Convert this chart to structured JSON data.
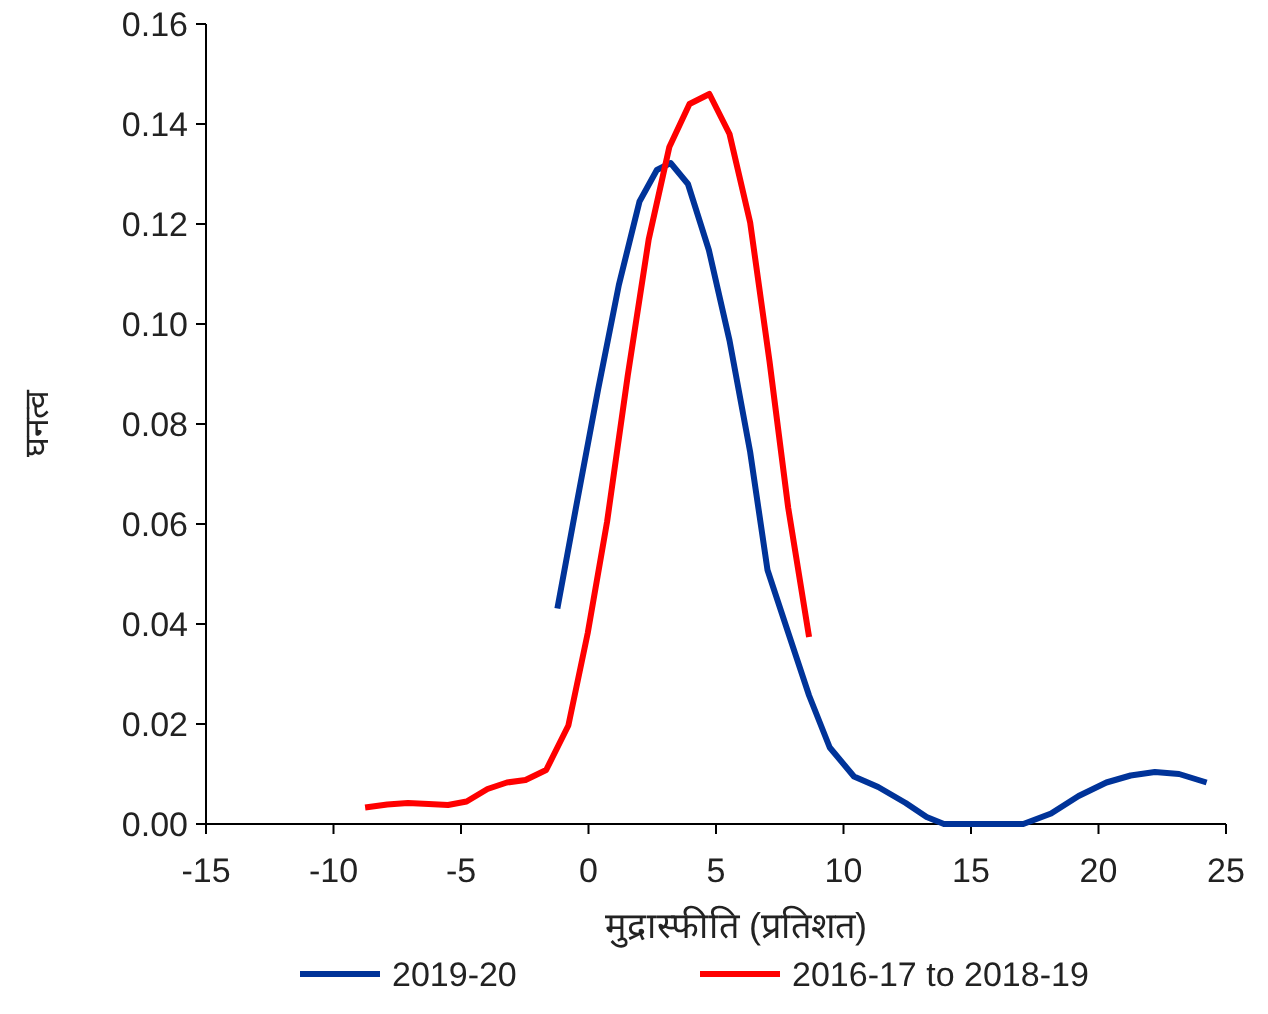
{
  "chart_data": {
    "type": "line",
    "xlabel": "मुद्रास्फीति (प्रतिशत)",
    "ylabel": "घनत्व",
    "xlim": [
      -15,
      25
    ],
    "xticks": [
      -15,
      -10,
      -5,
      0,
      5,
      10,
      15,
      20,
      25
    ],
    "ylim": [
      0,
      0.16
    ],
    "yticks": [
      {
        "value": 0,
        "label": "0.00"
      },
      {
        "value": 0.02,
        "label": "0.02"
      },
      {
        "value": 0.04,
        "label": "0.04"
      },
      {
        "value": 0.06,
        "label": "0.06"
      },
      {
        "value": 0.08,
        "label": "0.08"
      },
      {
        "value": 0.1,
        "label": "0.10"
      },
      {
        "value": 0.12,
        "label": "0.12"
      },
      {
        "value": 0.14,
        "label": "0.14"
      },
      {
        "value": 0.16,
        "label": "0.16"
      }
    ],
    "legend": "bottom",
    "series": [
      {
        "name": "2019-20",
        "color": "#003399",
        "x": [
          -1.22,
          -0.44,
          0.38,
          1.19,
          2.0,
          2.68,
          3.22,
          3.9,
          4.72,
          5.53,
          6.34,
          7.02,
          7.83,
          8.65,
          9.46,
          10.41,
          11.36,
          12.44,
          13.26,
          13.94,
          15.02,
          16.11,
          17.05,
          18.14,
          19.22,
          20.31,
          21.26,
          22.21,
          23.16,
          24.24
        ],
        "values": [
          0.0431,
          0.0647,
          0.087,
          0.1078,
          0.1245,
          0.1308,
          0.1322,
          0.128,
          0.1148,
          0.0967,
          0.0744,
          0.0508,
          0.0383,
          0.0257,
          0.0153,
          0.0095,
          0.0074,
          0.0042,
          0.0014,
          0.0,
          0.0,
          0.0,
          0.0,
          0.0021,
          0.0056,
          0.0083,
          0.0097,
          0.0104,
          0.01,
          0.0083
        ]
      },
      {
        "name": "2016-17 to 2018-19",
        "color": "#ff0000",
        "x": [
          -8.76,
          -7.89,
          -7.08,
          -6.27,
          -5.51,
          -4.78,
          -3.96,
          -3.2,
          -2.47,
          -1.66,
          -0.79,
          -0.03,
          0.73,
          1.54,
          2.36,
          3.17,
          3.96,
          4.74,
          5.53,
          6.34,
          7.1,
          7.83,
          8.65
        ],
        "values": [
          0.0033,
          0.0039,
          0.0042,
          0.004,
          0.0038,
          0.0045,
          0.007,
          0.0083,
          0.0088,
          0.0108,
          0.0197,
          0.0382,
          0.0605,
          0.0897,
          0.1169,
          0.1354,
          0.144,
          0.146,
          0.138,
          0.1203,
          0.0925,
          0.0633,
          0.0374
        ]
      }
    ]
  }
}
